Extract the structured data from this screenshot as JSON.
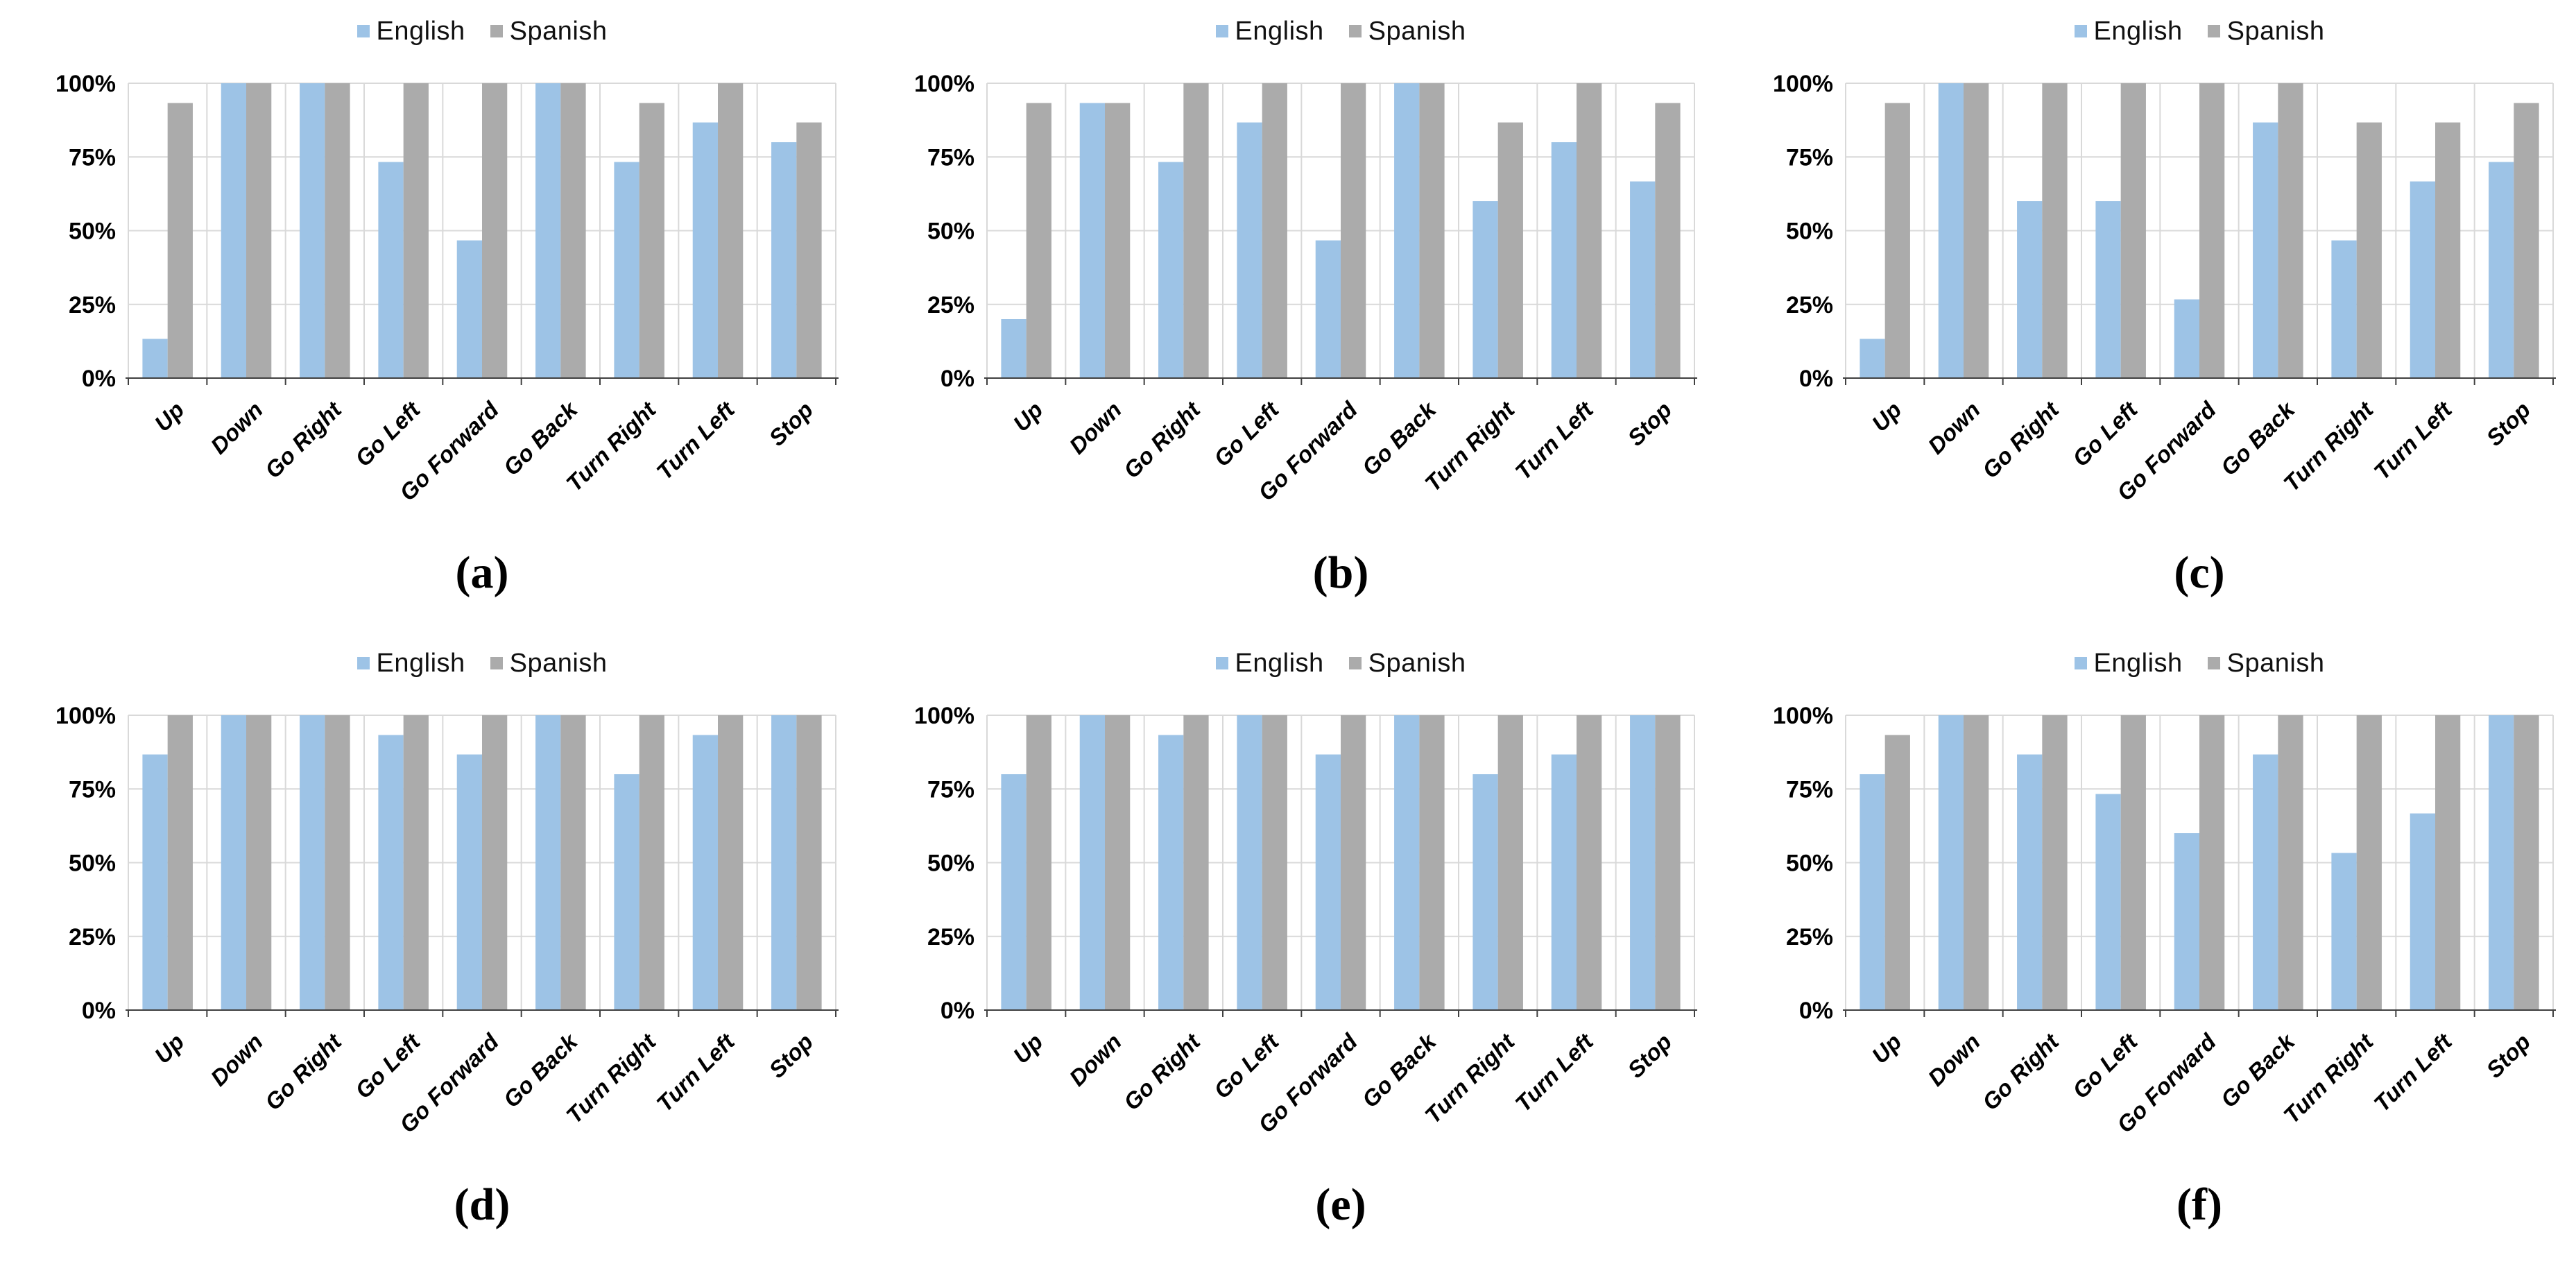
{
  "figure": {
    "description": "Six grouped bar charts comparing English vs Spanish recognition percentages for voice commands",
    "rows": 2,
    "cols": 3
  },
  "colors": {
    "english": "#9DC3E6",
    "spanish": "#ABABAB",
    "gridline": "#D9D9D9",
    "axis": "#404040"
  },
  "y_axis": {
    "tick_labels": [
      "0%",
      "25%",
      "50%",
      "75%",
      "100%"
    ],
    "tick_values": [
      0,
      25,
      50,
      75,
      100
    ]
  },
  "chart_data": [
    {
      "type": "bar",
      "caption": "(a)",
      "categories": [
        "Up",
        "Down",
        "Go Right",
        "Go Left",
        "Go Forward",
        "Go Back",
        "Turn Right",
        "Turn Left",
        "Stop"
      ],
      "series": [
        {
          "name": "English",
          "values": [
            13.3,
            100,
            100,
            73.3,
            46.7,
            100,
            73.3,
            86.7,
            80
          ]
        },
        {
          "name": "Spanish",
          "values": [
            93.3,
            100,
            100,
            100,
            100,
            100,
            93.3,
            100,
            86.7
          ]
        }
      ],
      "xlabel": "",
      "ylabel": "",
      "ylim": [
        0,
        100
      ],
      "grid": true,
      "legend_position": "top"
    },
    {
      "type": "bar",
      "caption": "(b)",
      "categories": [
        "Up",
        "Down",
        "Go Right",
        "Go Left",
        "Go Forward",
        "Go Back",
        "Turn Right",
        "Turn Left",
        "Stop"
      ],
      "series": [
        {
          "name": "English",
          "values": [
            20,
            93.3,
            73.3,
            86.7,
            46.7,
            100,
            60,
            80,
            66.7
          ]
        },
        {
          "name": "Spanish",
          "values": [
            93.3,
            93.3,
            100,
            100,
            100,
            100,
            86.7,
            100,
            93.3
          ]
        }
      ],
      "xlabel": "",
      "ylabel": "",
      "ylim": [
        0,
        100
      ],
      "grid": true,
      "legend_position": "top"
    },
    {
      "type": "bar",
      "caption": "(c)",
      "categories": [
        "Up",
        "Down",
        "Go Right",
        "Go Left",
        "Go Forward",
        "Go Back",
        "Turn Right",
        "Turn Left",
        "Stop"
      ],
      "series": [
        {
          "name": "English",
          "values": [
            13.3,
            100,
            60,
            60,
            26.7,
            86.7,
            46.7,
            66.7,
            73.3
          ]
        },
        {
          "name": "Spanish",
          "values": [
            93.3,
            100,
            100,
            100,
            100,
            100,
            86.7,
            86.7,
            93.3
          ]
        }
      ],
      "xlabel": "",
      "ylabel": "",
      "ylim": [
        0,
        100
      ],
      "grid": true,
      "legend_position": "top"
    },
    {
      "type": "bar",
      "caption": "(d)",
      "categories": [
        "Up",
        "Down",
        "Go Right",
        "Go Left",
        "Go Forward",
        "Go Back",
        "Turn Right",
        "Turn Left",
        "Stop"
      ],
      "series": [
        {
          "name": "English",
          "values": [
            86.7,
            100,
            100,
            93.3,
            86.7,
            100,
            80,
            93.3,
            100
          ]
        },
        {
          "name": "Spanish",
          "values": [
            100,
            100,
            100,
            100,
            100,
            100,
            100,
            100,
            100
          ]
        }
      ],
      "xlabel": "",
      "ylabel": "",
      "ylim": [
        0,
        100
      ],
      "grid": true,
      "legend_position": "top"
    },
    {
      "type": "bar",
      "caption": "(e)",
      "categories": [
        "Up",
        "Down",
        "Go Right",
        "Go Left",
        "Go Forward",
        "Go Back",
        "Turn Right",
        "Turn Left",
        "Stop"
      ],
      "series": [
        {
          "name": "English",
          "values": [
            80,
            100,
            93.3,
            100,
            86.7,
            100,
            80,
            86.7,
            100
          ]
        },
        {
          "name": "Spanish",
          "values": [
            100,
            100,
            100,
            100,
            100,
            100,
            100,
            100,
            100
          ]
        }
      ],
      "xlabel": "",
      "ylabel": "",
      "ylim": [
        0,
        100
      ],
      "grid": true,
      "legend_position": "top"
    },
    {
      "type": "bar",
      "caption": "(f)",
      "categories": [
        "Up",
        "Down",
        "Go Right",
        "Go Left",
        "Go Forward",
        "Go Back",
        "Turn Right",
        "Turn Left",
        "Stop"
      ],
      "series": [
        {
          "name": "English",
          "values": [
            80,
            100,
            86.7,
            73.3,
            60,
            86.7,
            53.3,
            66.7,
            100
          ]
        },
        {
          "name": "Spanish",
          "values": [
            93.3,
            100,
            100,
            100,
            100,
            100,
            100,
            100,
            100
          ]
        }
      ],
      "xlabel": "",
      "ylabel": "",
      "ylim": [
        0,
        100
      ],
      "grid": true,
      "legend_position": "top"
    }
  ]
}
